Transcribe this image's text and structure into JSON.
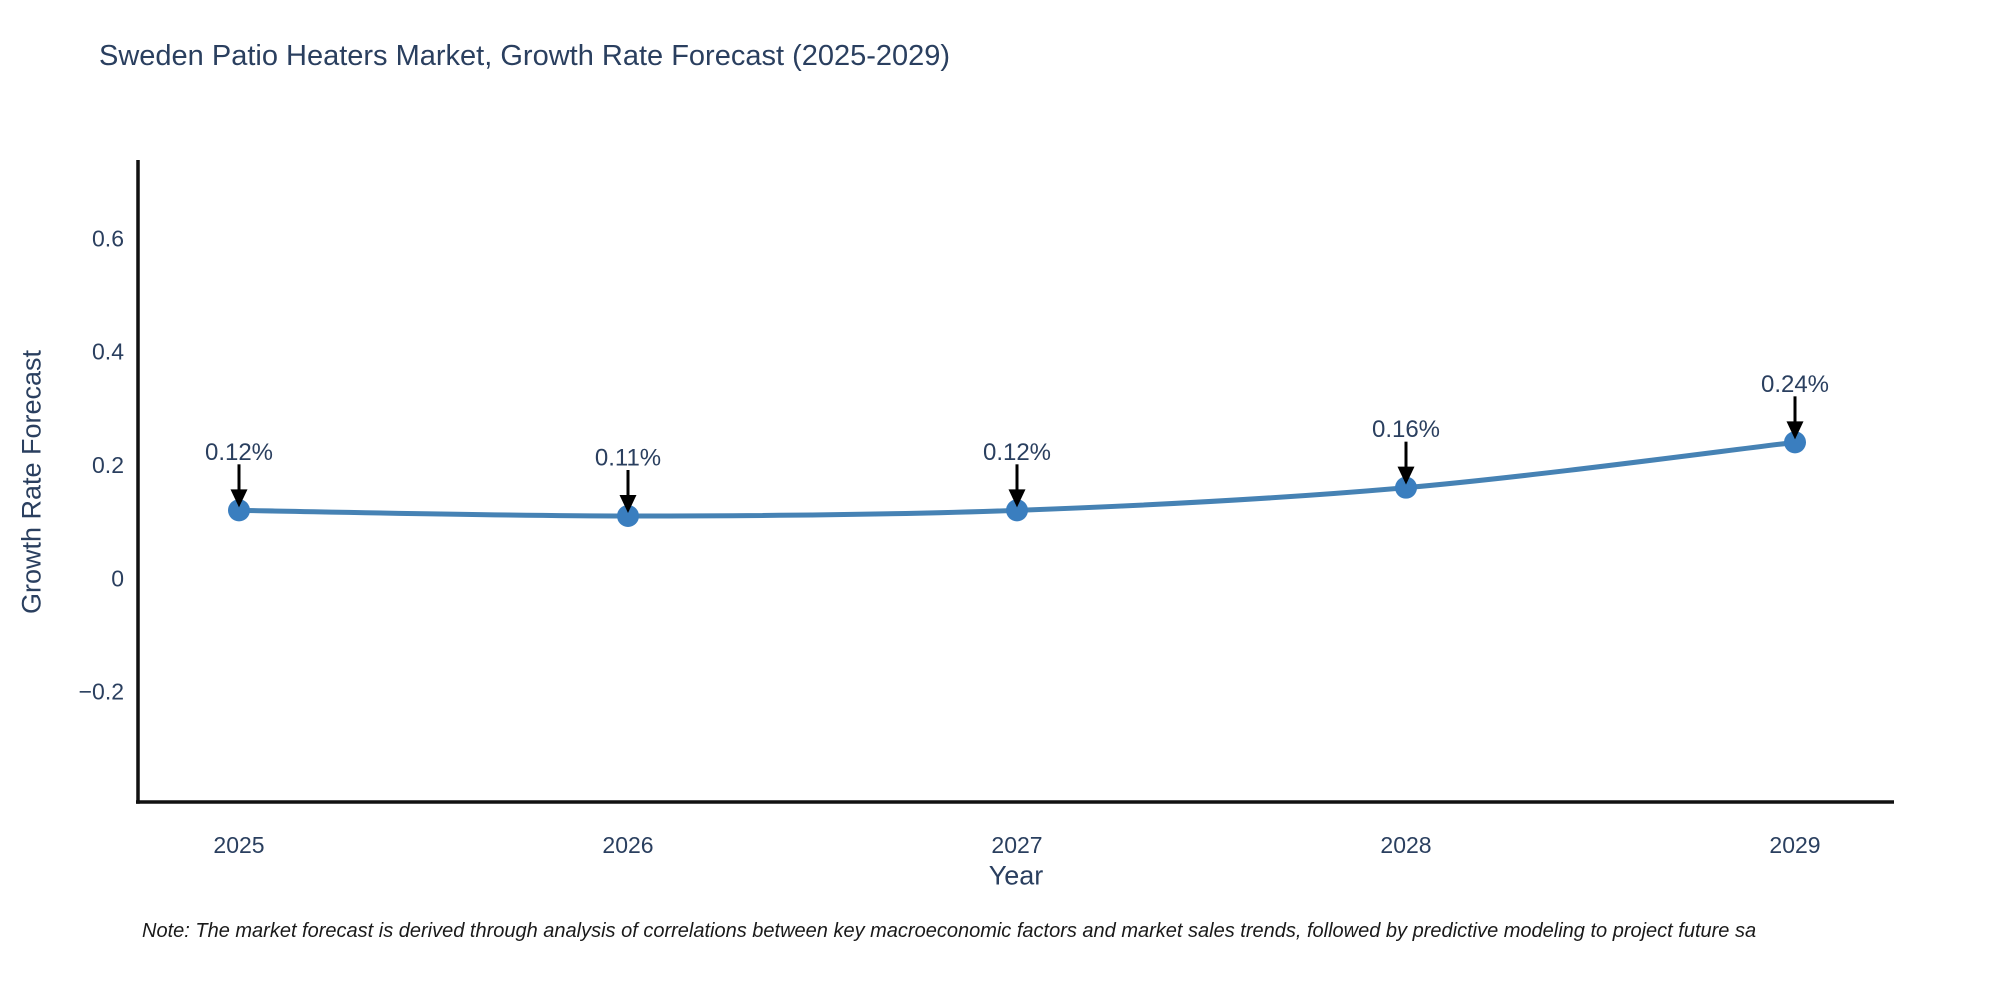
{
  "title": "Sweden Patio Heaters Market, Growth Rate Forecast (2025-2029)",
  "footnote": "Note: The market forecast is derived through analysis of correlations between key macroeconomic factors and market sales trends, followed by predictive modeling to project future sa",
  "chart_data": {
    "type": "line",
    "title": "Sweden Patio Heaters Market, Growth Rate Forecast (2025-2029)",
    "xlabel": "Year",
    "ylabel": "Growth Rate Forecast",
    "x": [
      2025,
      2026,
      2027,
      2028,
      2029
    ],
    "values": [
      0.12,
      0.11,
      0.12,
      0.16,
      0.24
    ],
    "point_labels": [
      "0.12%",
      "0.11%",
      "0.12%",
      "0.16%",
      "0.24%"
    ],
    "xtick_labels": [
      "2025",
      "2026",
      "2027",
      "2028",
      "2029"
    ],
    "ytick_values": [
      -0.2,
      0,
      0.2,
      0.4,
      0.6
    ],
    "ytick_labels": [
      "−0.2",
      "0",
      "0.2",
      "0.4",
      "0.6"
    ],
    "ylim": [
      -0.395,
      0.74
    ],
    "grid": false,
    "legend": "none",
    "line_shape": "spline",
    "colors": {
      "line": "#4682b4",
      "marker": "#3a7ebf",
      "axis": "#111111",
      "tick_text": "#2a3f5f",
      "annotation_text": "#2a3f5f",
      "annotation_arrow": "#000000",
      "background": "#ffffff"
    }
  }
}
